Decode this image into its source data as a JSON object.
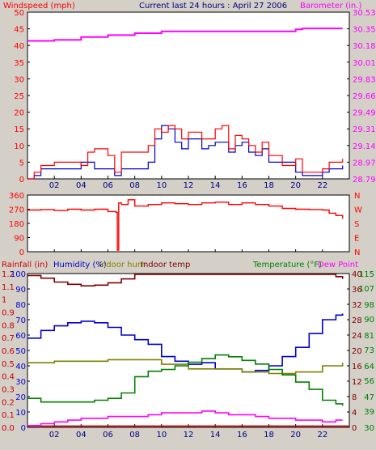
{
  "header": {
    "left_label": "Windspeed (mph)",
    "center_title": "Current last 24 hours : April 27 2006",
    "right_label": "Barometer (in.)"
  },
  "colors": {
    "background": "#d4d0c8",
    "wind_axis": "#ff0000",
    "baro_axis": "#ff00ff",
    "title": "#000080",
    "avg_wind": "#0000cc",
    "gust": "#ff0000",
    "barometer": "#ff00ff",
    "direction": "#ff0000",
    "rainfall": "#cc0000",
    "humidity": "#0000cc",
    "indoor_hum": "#808000",
    "indoor_temp": "#800000",
    "temperature": "#008000",
    "dew_point": "#ff00ff",
    "grid": "#000000"
  },
  "chart_data": [
    {
      "id": "wind_baro",
      "type": "line",
      "title": "Current last 24 hours : April 27 2006",
      "x_ticks": [
        "02",
        "04",
        "06",
        "08",
        "10",
        "12",
        "14",
        "16",
        "18",
        "20",
        "22"
      ],
      "x_range": [
        0,
        24
      ],
      "y_left": {
        "label": "Windspeed (mph)",
        "ticks": [
          0,
          5,
          10,
          15,
          20,
          25,
          30,
          35,
          40,
          45,
          50
        ],
        "range": [
          0,
          50
        ]
      },
      "y_right": {
        "label": "Barometer (in.)",
        "ticks": [
          "28.79",
          "28.97",
          "29.14",
          "29.31",
          "29.49",
          "29.66",
          "29.83",
          "30.01",
          "30.18",
          "30.35",
          "30.53"
        ],
        "range": [
          28.79,
          30.53
        ]
      },
      "series": [
        {
          "axis": "left",
          "color_key": "avg_wind",
          "x": [
            0,
            0.5,
            1,
            2,
            3,
            4,
            5,
            6,
            6.5,
            7,
            8,
            9,
            9.5,
            10,
            10.5,
            11,
            11.5,
            12,
            13,
            13.5,
            14,
            14.5,
            15,
            15.5,
            16,
            16.5,
            17,
            17.5,
            18,
            19,
            20,
            20.5,
            21,
            22,
            22.5,
            23,
            23.5
          ],
          "values": [
            0,
            1,
            3,
            3,
            3,
            5,
            3,
            3,
            1,
            3,
            3,
            5,
            12,
            16,
            15,
            11,
            9,
            12,
            9,
            10,
            11,
            11,
            8,
            10,
            11,
            8,
            7,
            9,
            5,
            5,
            2,
            1,
            1,
            2,
            3,
            3,
            4
          ]
        },
        {
          "axis": "left",
          "color_key": "gust",
          "x": [
            0,
            0.5,
            1,
            2,
            3,
            4,
            4.5,
            5,
            6,
            6.5,
            7,
            8,
            9,
            9.5,
            10,
            10.5,
            11,
            11.5,
            12,
            13,
            13.5,
            14,
            14.5,
            15,
            15.5,
            16,
            16.5,
            17,
            17.5,
            18,
            19,
            20,
            20.5,
            21,
            22,
            22.5,
            23,
            23.5
          ],
          "values": [
            0,
            2,
            4,
            5,
            5,
            4,
            8,
            9,
            7,
            2,
            8,
            8,
            10,
            15,
            14,
            16,
            15,
            12,
            14,
            12,
            12,
            15,
            16,
            9,
            13,
            12,
            10,
            8,
            11,
            7,
            4,
            6,
            2,
            2,
            3,
            5,
            5,
            6
          ]
        },
        {
          "axis": "right",
          "color_key": "barometer",
          "x": [
            0,
            2,
            4,
            6,
            8,
            10,
            12,
            14,
            16,
            18,
            20,
            20.5,
            22,
            23.5
          ],
          "values": [
            30.23,
            30.24,
            30.27,
            30.29,
            30.31,
            30.33,
            30.33,
            30.33,
            30.33,
            30.33,
            30.35,
            30.36,
            30.36,
            30.36
          ]
        }
      ]
    },
    {
      "id": "wind_direction",
      "type": "line",
      "x_range": [
        0,
        24
      ],
      "y_left": {
        "ticks": [
          0,
          90,
          180,
          270,
          360
        ],
        "range": [
          0,
          360
        ]
      },
      "y_right": {
        "ticks": [
          "N",
          "W",
          "S",
          "E",
          "N"
        ]
      },
      "series": [
        {
          "axis": "left",
          "color_key": "direction",
          "x": [
            0,
            1,
            2,
            3,
            4,
            5,
            6,
            6.6,
            6.7,
            6.8,
            7,
            7.5,
            8,
            9,
            10,
            11,
            12,
            13,
            14,
            15,
            16,
            17,
            18,
            19,
            20,
            21,
            22,
            22.5,
            23,
            23.5
          ],
          "values": [
            265,
            268,
            262,
            270,
            265,
            270,
            255,
            250,
            10,
            310,
            300,
            330,
            290,
            300,
            310,
            305,
            300,
            310,
            315,
            300,
            310,
            300,
            290,
            275,
            270,
            268,
            265,
            245,
            230,
            210
          ]
        }
      ]
    },
    {
      "id": "temp_hum_rain",
      "type": "line",
      "x_range": [
        0,
        24
      ],
      "axis_labels": {
        "rainfall": "Rainfall (in)",
        "humidity": "Humidity (%)",
        "indoor_hum": "Indoor hum",
        "indoor_temp": "Indoor temp",
        "temperature": "Temperature (°F)",
        "dew_point": "Dew Point"
      },
      "y_axes": {
        "rainfall": {
          "ticks": [
            "0.0",
            "0.1",
            "0.2",
            "0.3",
            "0.4",
            "0.5",
            "0.6",
            "0.7",
            "0.8",
            "0.9",
            "1",
            "1.1",
            "1.2"
          ],
          "range": [
            0,
            1.2
          ]
        },
        "humidity": {
          "ticks": [
            0,
            10,
            20,
            30,
            40,
            50,
            60,
            70,
            80,
            90,
            100
          ],
          "range": [
            0,
            100
          ]
        },
        "indoor_temp": {
          "ticks": [
            0,
            4,
            8,
            12,
            16,
            20,
            24,
            28,
            32,
            36,
            40
          ],
          "range": [
            0,
            40
          ]
        },
        "temperature": {
          "ticks": [
            30,
            39,
            47,
            56,
            64,
            73,
            81,
            90,
            98,
            107,
            115
          ],
          "range": [
            30,
            115
          ]
        }
      },
      "series": [
        {
          "name": "Rainfall (in)",
          "axis": "rainfall",
          "color_key": "rainfall",
          "x": [
            0,
            24
          ],
          "values": [
            0.01,
            0.01
          ]
        },
        {
          "name": "Humidity (%)",
          "axis": "humidity",
          "color_key": "humidity",
          "x": [
            0,
            1,
            2,
            3,
            4,
            5,
            6,
            7,
            8,
            9,
            10,
            11,
            12,
            13,
            14,
            15,
            16,
            17,
            18,
            19,
            20,
            21,
            22,
            23,
            23.5
          ],
          "values": [
            58,
            63,
            66,
            68,
            69,
            68,
            65,
            60,
            57,
            54,
            46,
            43,
            41,
            42,
            38,
            38,
            36,
            37,
            40,
            46,
            52,
            61,
            70,
            73,
            74
          ]
        },
        {
          "name": "Indoor hum",
          "axis": "humidity",
          "color_key": "indoor_hum",
          "x": [
            0,
            2,
            4,
            6,
            8,
            10,
            12,
            14,
            16,
            18,
            20,
            22,
            23.5
          ],
          "values": [
            42,
            43,
            43,
            44,
            44,
            41,
            38,
            38,
            36,
            35,
            36,
            40,
            42
          ]
        },
        {
          "name": "Indoor temp",
          "axis": "indoor_temp",
          "color_key": "indoor_temp",
          "x": [
            0,
            1,
            2,
            3,
            4,
            5,
            6,
            7,
            8,
            22.5,
            23,
            23.5
          ],
          "values": [
            39.5,
            38.8,
            37.8,
            37.2,
            36.8,
            37.0,
            37.6,
            38.6,
            39.8,
            39.8,
            39.2,
            38.6
          ]
        },
        {
          "name": "Temperature (°F)",
          "axis": "temperature",
          "color_key": "temperature",
          "x": [
            0,
            1,
            2,
            3,
            4,
            5,
            6,
            7,
            8,
            9,
            10,
            11,
            12,
            13,
            14,
            15,
            16,
            17,
            18,
            19,
            20,
            21,
            22,
            23,
            23.5
          ],
          "values": [
            46,
            44,
            44,
            44,
            44,
            45,
            46,
            49,
            58,
            61,
            62,
            64,
            66,
            68,
            70,
            69,
            67,
            65,
            62,
            59,
            55,
            51,
            45,
            43,
            42
          ]
        },
        {
          "name": "Dew Point",
          "axis": "temperature",
          "color_key": "dew_point",
          "x": [
            0,
            1,
            2,
            3,
            4,
            5,
            6,
            7,
            8,
            9,
            10,
            11,
            12,
            13,
            14,
            15,
            16,
            17,
            18,
            19,
            20,
            21,
            22,
            23,
            23.5
          ],
          "values": [
            31,
            32,
            33,
            34,
            35,
            35,
            36,
            36,
            36,
            37,
            38,
            38,
            38,
            39,
            38,
            37,
            37,
            36,
            35,
            35,
            34,
            34,
            33,
            34,
            34
          ]
        }
      ],
      "x_ticks": [
        "02",
        "04",
        "06",
        "08",
        "10",
        "12",
        "14",
        "16",
        "18",
        "20",
        "22"
      ]
    }
  ]
}
